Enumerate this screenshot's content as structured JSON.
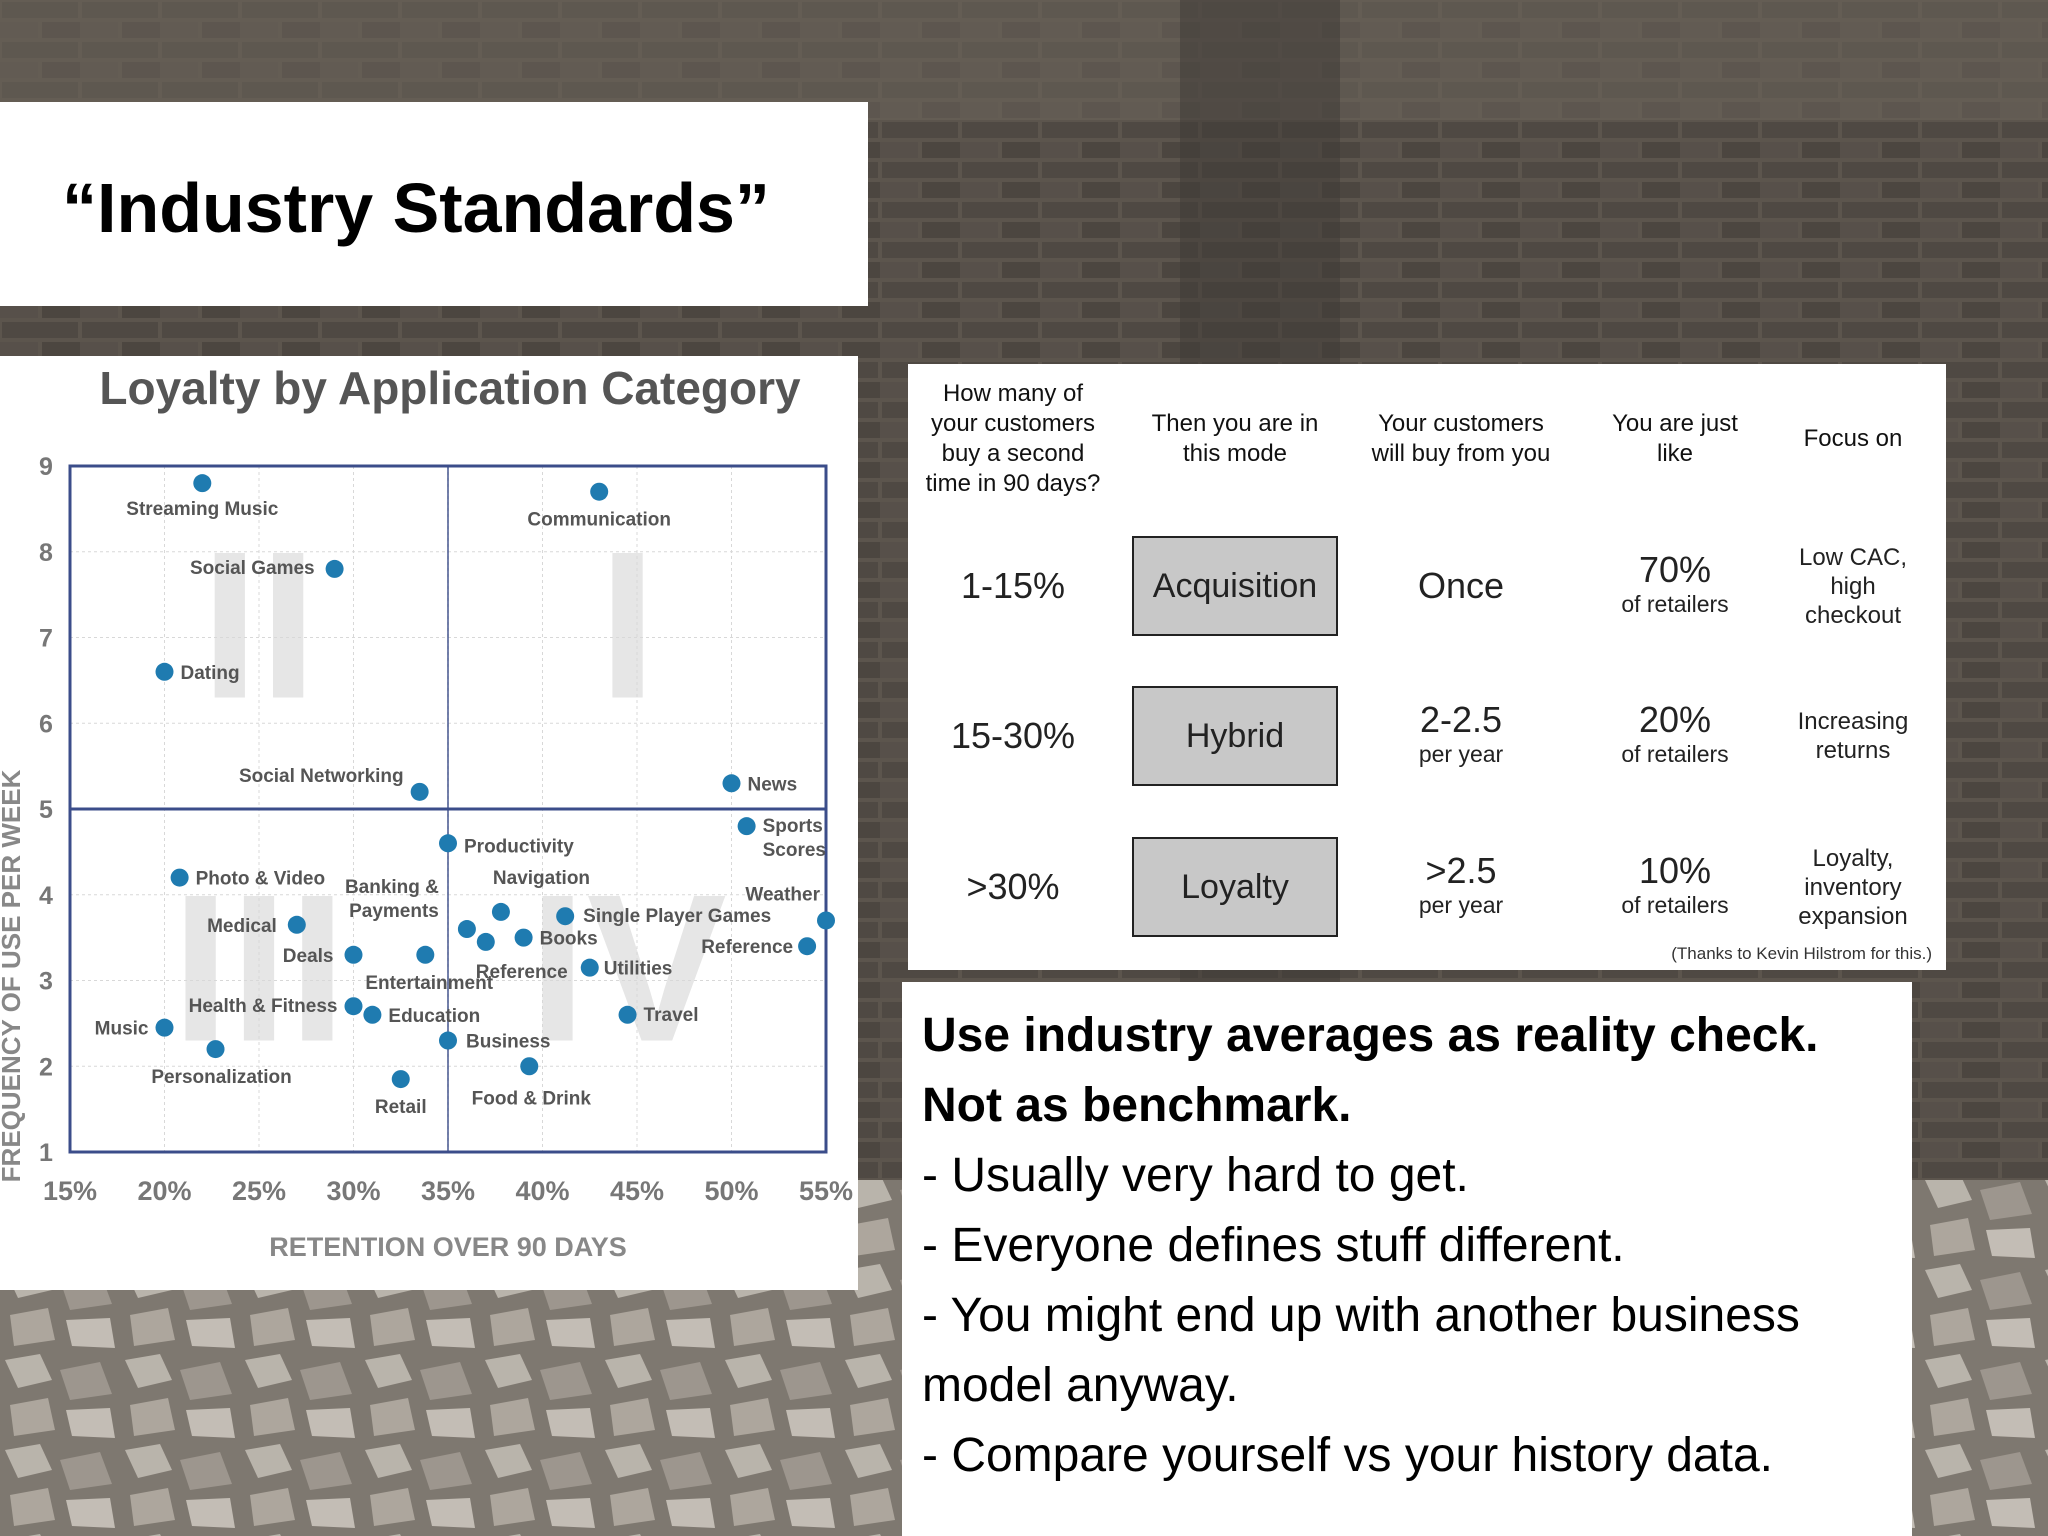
{
  "slide": {
    "title": "“Industry Standards”",
    "notes": [
      {
        "text": "Use industry averages as reality check.",
        "bold": true
      },
      {
        "text": "Not as benchmark.",
        "bold": true
      },
      {
        "text": "- Usually very hard to get.",
        "bold": false
      },
      {
        "text": "- Everyone defines stuff different.",
        "bold": false
      },
      {
        "text": "- You might end up with another business",
        "bold": false
      },
      {
        "text": "model anyway.",
        "bold": false
      },
      {
        "text": "- Compare yourself vs your history data.",
        "bold": false
      }
    ]
  },
  "table": {
    "headers": [
      [
        "How many of",
        "your customers",
        "buy a second",
        "time in 90 days?"
      ],
      [
        "Then you are in",
        "this mode"
      ],
      [
        "Your customers",
        "will buy from you"
      ],
      [
        "You are just",
        "like"
      ],
      [
        "Focus on"
      ]
    ],
    "rows": [
      {
        "rate": "1-15%",
        "mode": "Acquisition",
        "buy_main": "Once",
        "buy_sub": "",
        "like_main": "70%",
        "like_sub": "of retailers",
        "focus": [
          "Low CAC,",
          "high",
          "checkout"
        ]
      },
      {
        "rate": "15-30%",
        "mode": "Hybrid",
        "buy_main": "2-2.5",
        "buy_sub": "per year",
        "like_main": "20%",
        "like_sub": "of retailers",
        "focus": [
          "Increasing",
          "returns"
        ]
      },
      {
        "rate": ">30%",
        "mode": "Loyalty",
        "buy_main": ">2.5",
        "buy_sub": "per year",
        "like_main": "10%",
        "like_sub": "of retailers",
        "focus": [
          "Loyalty,",
          "inventory",
          "expansion"
        ]
      }
    ],
    "credit": "(Thanks to Kevin Hilstrom for this.)"
  },
  "chart_data": {
    "type": "scatter",
    "title": "Loyalty by Application Category",
    "xlabel": "RETENTION OVER 90 DAYS",
    "ylabel": "FREQUENCY OF USE PER WEEK",
    "xlim": [
      15,
      55
    ],
    "ylim": [
      1,
      9
    ],
    "x_ticks": [
      "15%",
      "20%",
      "25%",
      "30%",
      "35%",
      "40%",
      "45%",
      "50%",
      "55%"
    ],
    "y_ticks": [
      "1",
      "2",
      "3",
      "4",
      "5",
      "6",
      "7",
      "8",
      "9"
    ],
    "quadrants": [
      "II",
      "I",
      "III",
      "IV"
    ],
    "divider": {
      "x": 35,
      "y": 5
    },
    "colors": {
      "point": "#1f7bb0",
      "frame": "#3b4d8a",
      "title": "#555555",
      "quadrant": "#e6e6e6",
      "grid": "#d8d8d8"
    },
    "points": [
      {
        "name": "Streaming Music",
        "x": 22,
        "y": 8.8
      },
      {
        "name": "Communication",
        "x": 43,
        "y": 8.7
      },
      {
        "name": "Social Games",
        "x": 29,
        "y": 7.8
      },
      {
        "name": "Dating",
        "x": 20,
        "y": 6.6
      },
      {
        "name": "Social Networking",
        "x": 33.5,
        "y": 5.2
      },
      {
        "name": "News",
        "x": 50,
        "y": 5.3
      },
      {
        "name": "Sports Scores",
        "x": 50.8,
        "y": 4.8
      },
      {
        "name": "Productivity",
        "x": 35,
        "y": 4.6
      },
      {
        "name": "Photo & Video",
        "x": 20.8,
        "y": 4.2
      },
      {
        "name": "Weather",
        "x": 55,
        "y": 3.7
      },
      {
        "name": "Banking & Payments",
        "x": 36,
        "y": 3.6
      },
      {
        "name": "Navigation",
        "x": 37.8,
        "y": 3.8
      },
      {
        "name": "Single Player Games",
        "x": 41.2,
        "y": 3.75
      },
      {
        "name": "Medical",
        "x": 27,
        "y": 3.65
      },
      {
        "name": "Books",
        "x": 39,
        "y": 3.5
      },
      {
        "name": "Reference",
        "x": 37,
        "y": 3.45
      },
      {
        "name": "Reference",
        "x": 54,
        "y": 3.4
      },
      {
        "name": "Deals",
        "x": 30,
        "y": 3.3
      },
      {
        "name": "Entertainment",
        "x": 33.8,
        "y": 3.3
      },
      {
        "name": "Utilities",
        "x": 42.5,
        "y": 3.15
      },
      {
        "name": "Health & Fitness",
        "x": 30,
        "y": 2.7
      },
      {
        "name": "Education",
        "x": 31,
        "y": 2.6
      },
      {
        "name": "Travel",
        "x": 44.5,
        "y": 2.6
      },
      {
        "name": "Music",
        "x": 20,
        "y": 2.45
      },
      {
        "name": "Business",
        "x": 35,
        "y": 2.3
      },
      {
        "name": "Personalization",
        "x": 22.7,
        "y": 2.2
      },
      {
        "name": "Food & Drink",
        "x": 39.3,
        "y": 2.0
      },
      {
        "name": "Retail",
        "x": 32.5,
        "y": 1.85
      }
    ]
  }
}
